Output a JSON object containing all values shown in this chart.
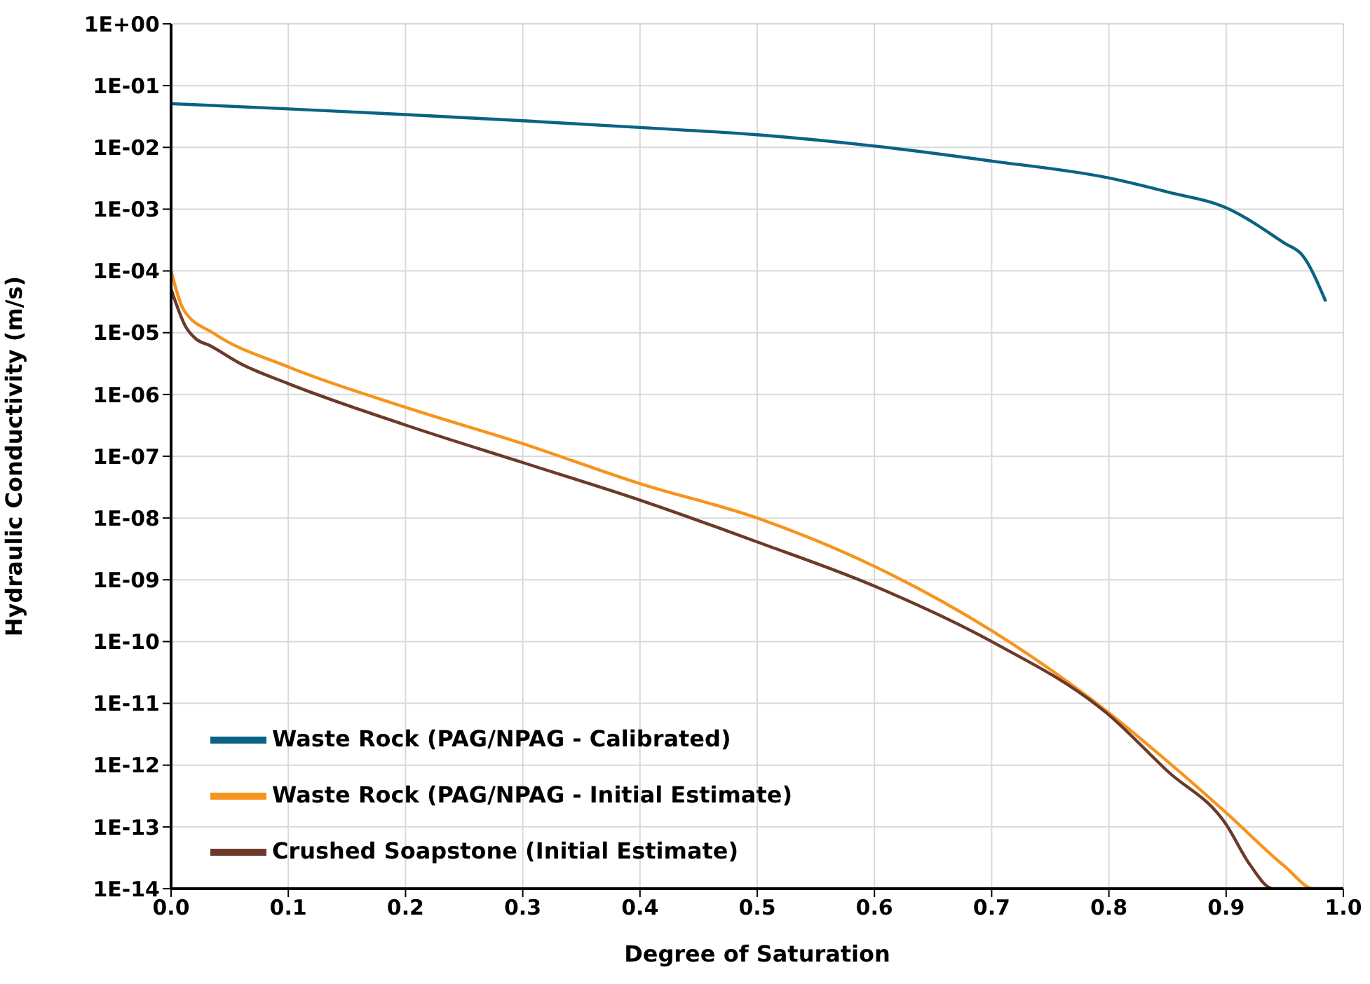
{
  "chart_data": {
    "type": "line",
    "xlabel": "Degree of Saturation",
    "ylabel": "Hydraulic Conductivity (m/s)",
    "log": "y",
    "grid": true,
    "legend": "bottom left",
    "line_style": "solid",
    "marker": "none",
    "xlim": [
      0,
      1
    ],
    "xticks": [
      {
        "value": 0,
        "label": "0.0"
      },
      0.1,
      0.2,
      0.3,
      0.4,
      0.5,
      0.6,
      0.7,
      0.8,
      0.9,
      {
        "value": 1,
        "label": "1.0"
      }
    ],
    "ylim": [
      1e-14,
      1
    ],
    "yticks": [
      {
        "value": 1e-14,
        "label": "1E-14"
      },
      {
        "value": 1e-13,
        "label": "1E-13"
      },
      {
        "value": 1e-12,
        "label": "1E-12"
      },
      {
        "value": 1e-11,
        "label": "1E-11"
      },
      {
        "value": 1e-10,
        "label": "1E-10"
      },
      {
        "value": 1e-09,
        "label": "1E-09"
      },
      {
        "value": 1e-08,
        "label": "1E-08"
      },
      {
        "value": 1e-07,
        "label": "1E-07"
      },
      {
        "value": 1e-06,
        "label": "1E-06"
      },
      {
        "value": 1e-05,
        "label": "1E-05"
      },
      {
        "value": 0.0001,
        "label": "1E-04"
      },
      {
        "value": 0.001,
        "label": "1E-03"
      },
      {
        "value": 0.01,
        "label": "1E-02"
      },
      {
        "value": 0.1,
        "label": "1E-01"
      },
      {
        "value": 1,
        "label": "1E+00"
      }
    ],
    "series": [
      {
        "name": "Waste Rock (PAG/NPAG - Calibrated)",
        "color": "#0b6384",
        "x": [
          0,
          0.1,
          0.2,
          0.3,
          0.4,
          0.5,
          0.6,
          0.7,
          0.8,
          0.85,
          0.9,
          0.95,
          0.965,
          0.985
        ],
        "values": [
          0.051,
          0.042,
          0.034,
          0.027,
          0.021,
          0.016,
          0.0105,
          0.006,
          0.0032,
          0.0019,
          0.00105,
          0.00028,
          0.00018,
          3.2e-05
        ]
      },
      {
        "name": "Waste Rock (PAG/NPAG - Initial Estimate)",
        "color": "#f7941d",
        "x": [
          0,
          0.011,
          0.037,
          0.1,
          0.2,
          0.3,
          0.4,
          0.5,
          0.6,
          0.7,
          0.8,
          0.85,
          0.9,
          0.95,
          0.975,
          1
        ],
        "values": [
          0.0001,
          2.3e-05,
          9.6e-06,
          2.8e-06,
          6.2e-07,
          1.6e-07,
          3.6e-08,
          1e-08,
          1.65e-09,
          1.5e-10,
          7e-12,
          1.15e-12,
          1.7e-13,
          2.3e-14,
          1e-14,
          1e-14
        ]
      },
      {
        "name": "Crushed Soapstone (Initial Estimate)",
        "color": "#6b3a2a",
        "x": [
          0,
          0.013,
          0.021,
          0.033,
          0.06,
          0.1,
          0.2,
          0.3,
          0.4,
          0.5,
          0.6,
          0.7,
          0.8,
          0.85,
          0.9,
          0.92,
          0.94,
          1
        ],
        "values": [
          5.1e-05,
          1.2e-05,
          8e-06,
          6.2e-06,
          3.1e-06,
          1.5e-06,
          3.2e-07,
          7.9e-08,
          1.95e-08,
          4.1e-09,
          7.9e-10,
          1e-10,
          6.5e-12,
          8e-13,
          1.1e-13,
          2.5e-14,
          1e-14,
          1e-14
        ]
      }
    ]
  }
}
